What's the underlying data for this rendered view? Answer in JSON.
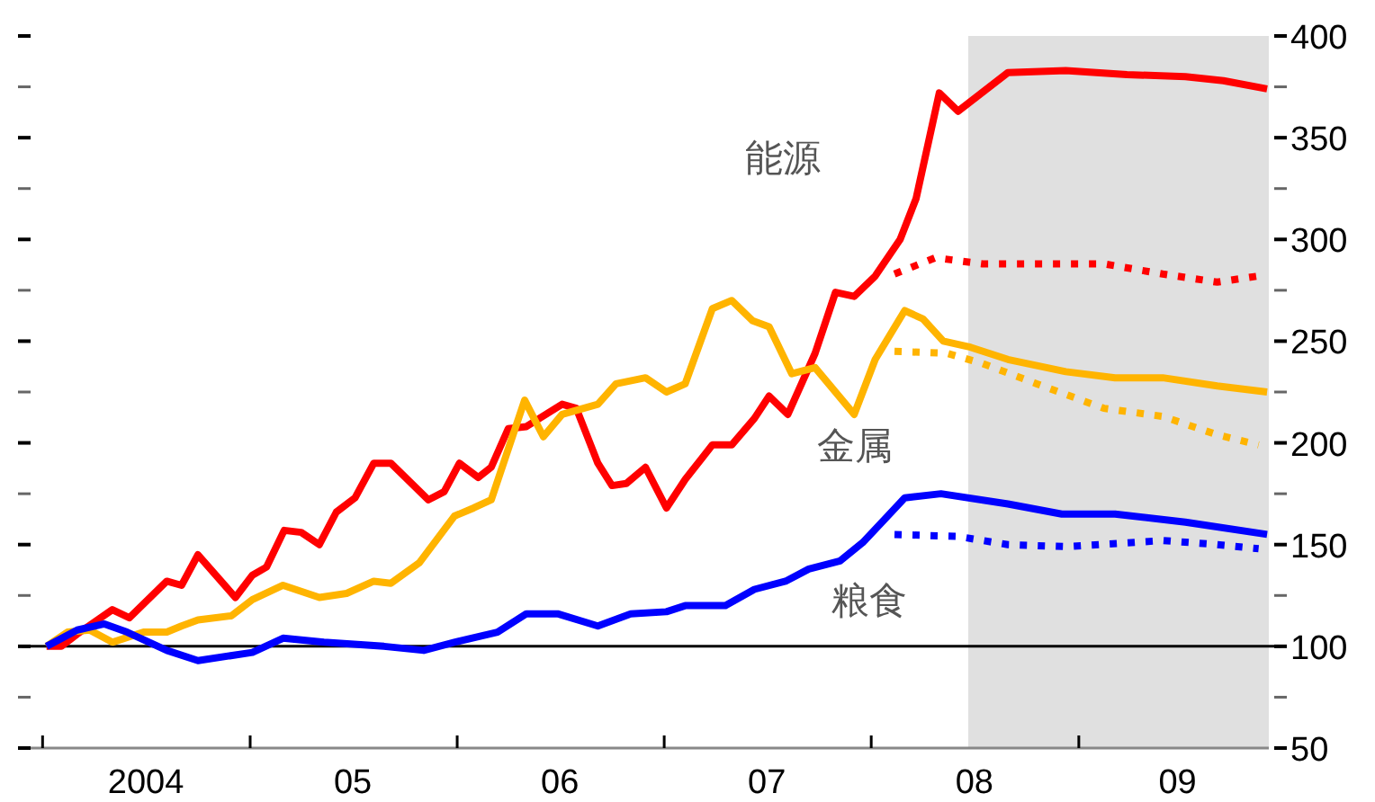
{
  "chart_data": {
    "type": "line",
    "xlim": [
      "2003-11-25",
      "2009-12-02"
    ],
    "ylim": [
      50,
      400
    ],
    "xticks": [
      {
        "value": "2004-01-01",
        "label": null
      },
      {
        "value": "2005-01-01",
        "label": null
      },
      {
        "value": "2006-01-01",
        "label": null
      },
      {
        "value": "2007-01-01",
        "label": null
      },
      {
        "value": "2008-01-01",
        "label": null
      },
      {
        "value": "2009-01-01",
        "label": null
      },
      {
        "value": "2004-07-01",
        "label": "2004"
      },
      {
        "value": "2005-07-01",
        "label": "05"
      },
      {
        "value": "2006-07-01",
        "label": "06"
      },
      {
        "value": "2007-07-01",
        "label": "07"
      },
      {
        "value": "2008-07-01",
        "label": "08"
      },
      {
        "value": "2009-06-24",
        "label": "09"
      }
    ],
    "yticks": [
      50,
      {
        "value": 75,
        "label": null
      },
      100,
      {
        "value": 125,
        "label": null
      },
      150,
      {
        "value": 175,
        "label": null
      },
      200,
      {
        "value": 225,
        "label": null
      },
      250,
      {
        "value": 275,
        "label": null
      },
      300,
      {
        "value": 325,
        "label": null
      },
      350,
      {
        "value": 375,
        "label": null
      },
      400
    ],
    "grid": false,
    "series": [
      {
        "name": "能源",
        "color": "#ff0000",
        "line_style": "solid",
        "x": [
          "2004-01-08",
          "2004-02-03",
          "2004-03-02",
          "2004-05-03",
          "2004-06-02",
          "2004-08-07",
          "2004-09-02",
          "2004-10-01",
          "2004-12-06",
          "2005-01-05",
          "2005-01-30",
          "2005-03-02",
          "2005-04-01",
          "2005-05-03",
          "2005-06-02",
          "2005-07-05",
          "2005-08-07",
          "2005-09-06",
          "2005-11-11",
          "2005-12-09",
          "2006-01-05",
          "2006-02-07",
          "2006-03-02",
          "2006-04-01",
          "2006-05-03",
          "2006-07-05",
          "2006-07-30",
          "2006-09-06",
          "2006-10-01",
          "2006-10-26",
          "2006-11-29",
          "2007-01-05",
          "2007-02-07",
          "2007-03-27",
          "2007-04-30",
          "2007-06-09",
          "2007-07-05",
          "2007-08-07",
          "2007-09-24",
          "2007-10-30",
          "2007-12-02",
          "2008-01-08",
          "2008-02-21",
          "2008-03-20",
          "2008-04-30",
          "2008-06-02",
          "2008-08-29",
          "2008-12-09",
          "2009-03-27",
          "2009-07-08",
          "2009-09-13",
          "2009-11-29"
        ],
        "values": [
          100,
          100,
          106,
          118,
          114,
          132,
          130,
          145,
          124,
          135,
          139,
          157,
          156,
          150,
          166,
          173,
          190,
          190,
          172,
          176,
          190,
          183,
          188,
          207,
          208,
          219,
          217,
          190,
          179,
          180,
          188,
          168,
          182,
          199,
          199,
          212,
          223,
          214,
          244,
          274,
          272,
          282,
          300,
          320,
          372,
          363,
          382,
          383,
          381,
          380,
          378,
          374
        ]
      },
      {
        "name": "金属",
        "color": "#ffb400",
        "line_style": "solid",
        "x": [
          "2004-01-08",
          "2004-02-14",
          "2004-03-24",
          "2004-05-03",
          "2004-06-27",
          "2004-08-07",
          "2004-09-02",
          "2004-10-01",
          "2004-11-29",
          "2005-01-05",
          "2005-02-28",
          "2005-05-03",
          "2005-06-20",
          "2005-08-07",
          "2005-09-06",
          "2005-10-26",
          "2005-12-27",
          "2006-01-30",
          "2006-03-02",
          "2006-04-30",
          "2006-06-02",
          "2006-07-05",
          "2006-09-06",
          "2006-10-08",
          "2006-11-29",
          "2007-01-05",
          "2007-02-07",
          "2007-03-27",
          "2007-04-30",
          "2007-06-06",
          "2007-07-05",
          "2007-08-14",
          "2007-09-24",
          "2007-12-02",
          "2008-01-08",
          "2008-02-29",
          "2008-04-01",
          "2008-05-07",
          "2008-06-24",
          "2008-08-29",
          "2008-12-09",
          "2009-03-06",
          "2009-05-29",
          "2009-09-02",
          "2009-11-29"
        ],
        "values": [
          100,
          107,
          108,
          102,
          107,
          107,
          110,
          113,
          115,
          123,
          130,
          124,
          126,
          132,
          131,
          141,
          164,
          168,
          172,
          221,
          203,
          214,
          219,
          229,
          232,
          225,
          229,
          266,
          270,
          260,
          257,
          234,
          237,
          214,
          241,
          265,
          261,
          250,
          247,
          241,
          235,
          232,
          232,
          228,
          225
        ]
      },
      {
        "name": "粮食",
        "color": "#0000ff",
        "line_style": "solid",
        "x": [
          "2004-01-08",
          "2004-03-02",
          "2004-04-19",
          "2004-05-29",
          "2004-08-07",
          "2004-10-01",
          "2005-01-05",
          "2005-02-28",
          "2005-05-11",
          "2005-08-25",
          "2005-11-03",
          "2005-12-27",
          "2006-03-13",
          "2006-05-03",
          "2006-06-27",
          "2006-09-06",
          "2006-11-03",
          "2007-01-05",
          "2007-02-07",
          "2007-04-19",
          "2007-06-09",
          "2007-08-03",
          "2007-09-13",
          "2007-11-07",
          "2007-12-17",
          "2008-01-30",
          "2008-02-29",
          "2008-05-03",
          "2008-08-29",
          "2008-12-02",
          "2009-03-06",
          "2009-07-08",
          "2009-11-29"
        ],
        "values": [
          100,
          108,
          111,
          107,
          98,
          93,
          97,
          104,
          102,
          100,
          98,
          102,
          107,
          116,
          116,
          110,
          116,
          117,
          120,
          120,
          128,
          132,
          138,
          142,
          151,
          164,
          173,
          175,
          170,
          165,
          165,
          161,
          155
        ]
      },
      {
        "color": "#ff0000",
        "line_style": "dotted",
        "x": [
          "2008-02-11",
          "2008-04-23",
          "2008-07-15",
          "2009-02-14",
          "2009-05-29",
          "2009-09-02",
          "2009-11-14"
        ],
        "values": [
          283,
          291,
          288,
          288,
          283,
          279,
          282
        ]
      },
      {
        "color": "#ffb400",
        "line_style": "dotted",
        "x": [
          "2008-02-11",
          "2008-05-14",
          "2008-07-15",
          "2008-10-19",
          "2009-02-14",
          "2009-05-29",
          "2009-09-02",
          "2009-11-14"
        ],
        "values": [
          245,
          244,
          239,
          229,
          217,
          213,
          204,
          199
        ]
      },
      {
        "color": "#0000ff",
        "line_style": "dotted",
        "x": [
          "2008-02-11",
          "2008-06-02",
          "2008-08-29",
          "2008-12-09",
          "2009-05-29",
          "2009-09-02",
          "2009-11-14"
        ],
        "values": [
          155,
          154,
          150,
          149,
          152,
          150,
          148
        ]
      }
    ],
    "ref_lines": [
      {
        "axis": "y",
        "value": 100,
        "color": "#000000"
      }
    ],
    "bands": [
      {
        "axis": "x",
        "from": "2008-06-20",
        "to": "2009-12-02",
        "color": "#e0e0e0"
      }
    ]
  }
}
